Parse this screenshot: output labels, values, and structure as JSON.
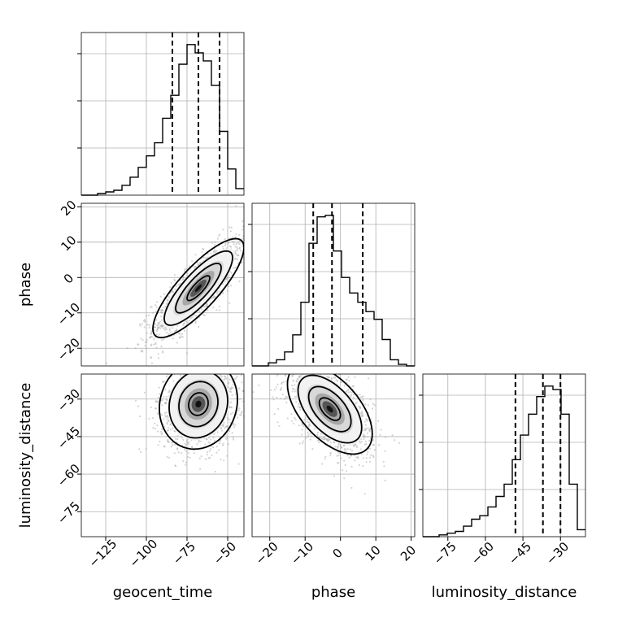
{
  "chart_data": {
    "type": "corner",
    "parameters": [
      "geocent_time",
      "phase",
      "luminosity_distance"
    ],
    "ranges": {
      "geocent_time": [
        -140,
        -40
      ],
      "phase": [
        -25,
        21
      ],
      "luminosity_distance": [
        -85,
        -20
      ]
    },
    "ticks": {
      "geocent_time": [
        -125,
        -100,
        -75,
        -50
      ],
      "phase": [
        -20,
        -10,
        0,
        10,
        20
      ],
      "luminosity_distance": [
        -75,
        -60,
        -45,
        -30
      ]
    },
    "tick_labels": {
      "geocent_time": [
        "−125",
        "−100",
        "−75",
        "−50"
      ],
      "phase": [
        "−20",
        "−10",
        "0",
        "10",
        "20"
      ],
      "luminosity_distance": [
        "−75",
        "−60",
        "−45",
        "−30"
      ]
    },
    "histograms": {
      "geocent_time": {
        "bin_edges": [
          -140,
          -135,
          -130,
          -125,
          -120,
          -115,
          -110,
          -105,
          -100,
          -95,
          -90,
          -85,
          -80,
          -75,
          -70,
          -65,
          -60,
          -55,
          -50,
          -45,
          -40
        ],
        "counts": [
          0,
          0,
          0.01,
          0.02,
          0.03,
          0.06,
          0.11,
          0.17,
          0.24,
          0.32,
          0.47,
          0.61,
          0.8,
          0.92,
          0.87,
          0.82,
          0.67,
          0.39,
          0.16,
          0.04
        ],
        "quantiles": [
          -84,
          -68,
          -55
        ]
      },
      "phase": {
        "bin_edges": [
          -25,
          -22.7,
          -20.4,
          -18.1,
          -15.8,
          -13.5,
          -11.2,
          -8.9,
          -6.6,
          -4.3,
          -2.0,
          0.3,
          2.6,
          4.9,
          7.2,
          9.5,
          11.8,
          14.1,
          16.4,
          18.7,
          21.0
        ],
        "counts": [
          0,
          0,
          0.02,
          0.04,
          0.09,
          0.2,
          0.41,
          0.79,
          0.96,
          0.97,
          0.74,
          0.57,
          0.47,
          0.41,
          0.35,
          0.3,
          0.17,
          0.04,
          0.01,
          0
        ],
        "quantiles": [
          -7.7,
          -2.4,
          6.3
        ]
      },
      "luminosity_distance": {
        "bin_edges": [
          -85,
          -81.75,
          -78.5,
          -75.25,
          -72,
          -68.75,
          -65.5,
          -62.25,
          -59,
          -55.75,
          -52.5,
          -49.25,
          -46,
          -42.75,
          -39.5,
          -36.25,
          -33,
          -29.75,
          -26.5,
          -23.25,
          -20
        ],
        "counts": [
          0,
          0,
          0.01,
          0.02,
          0.03,
          0.06,
          0.1,
          0.12,
          0.17,
          0.23,
          0.3,
          0.44,
          0.58,
          0.7,
          0.8,
          0.86,
          0.84,
          0.7,
          0.3,
          0.04
        ],
        "quantiles": [
          -48,
          -37,
          -30
        ]
      }
    },
    "contour_levels_sigma": [
      0.5,
      1.0,
      1.5,
      2.0
    ],
    "pairs": [
      {
        "x": "geocent_time",
        "y": "phase",
        "mean": [
          -68,
          -3
        ],
        "std": [
          14,
          7
        ],
        "corr": 0.82
      },
      {
        "x": "geocent_time",
        "y": "luminosity_distance",
        "mean": [
          -68,
          -32
        ],
        "std": [
          12,
          9
        ],
        "corr": 0.1
      },
      {
        "x": "phase",
        "y": "luminosity_distance",
        "mean": [
          -3,
          -34
        ],
        "std": [
          6,
          9
        ],
        "corr": -0.55
      }
    ],
    "colors": {
      "line": "#000000",
      "grid": "#b0b0b0",
      "scatter": "#a0a0a0"
    }
  }
}
